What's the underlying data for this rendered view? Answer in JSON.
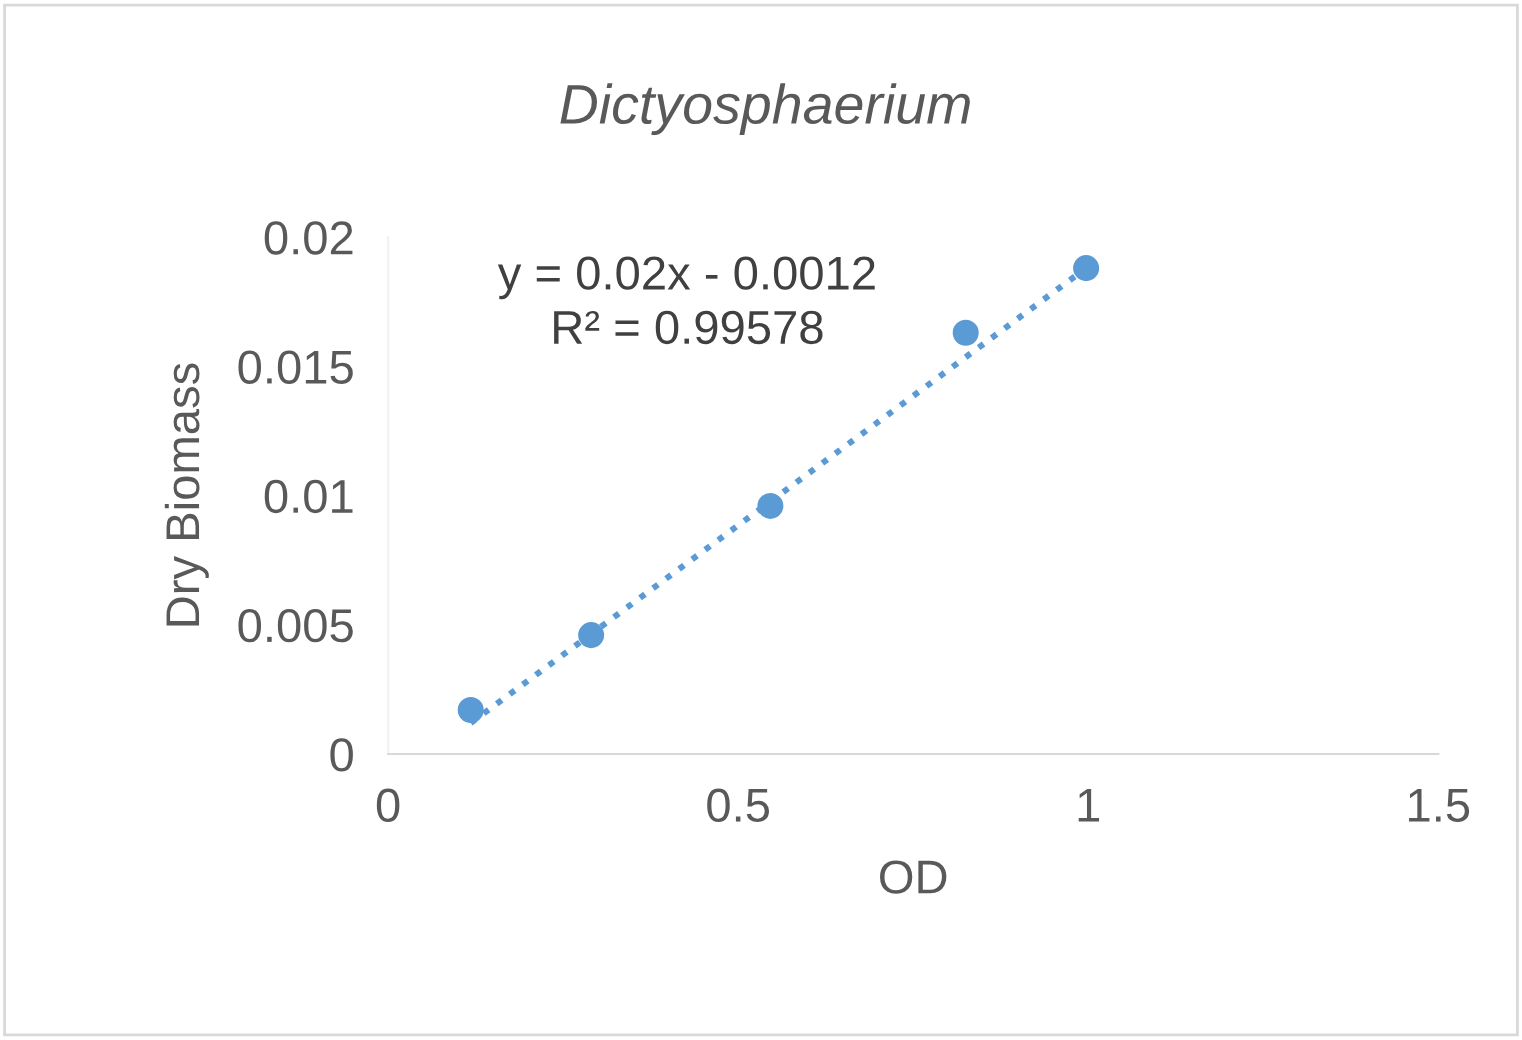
{
  "chart_data": {
    "type": "scatter",
    "title": "Dictyosphaerium",
    "xlabel": "OD",
    "ylabel": "Dry Biomass",
    "series": [
      {
        "color": "#5b9bd5",
        "marker": "circle",
        "x": [
          0.118,
          0.29,
          0.546,
          0.825,
          0.997
        ],
        "values": [
          0.0017,
          0.0046,
          0.0096,
          0.0163,
          0.0188
        ]
      },
      {
        "type": "line",
        "color": "#5b9bd5",
        "line_style": "dotted",
        "marker": "none",
        "x": [
          0.118,
          0.997
        ],
        "values": [
          0.0012,
          0.0188
        ]
      }
    ],
    "annotations": [
      "y = 0.02x - 0.0012\nR² = 0.99578"
    ],
    "xlim": [
      0,
      1.5
    ],
    "xticks": [
      0,
      0.5,
      1,
      1.5
    ],
    "ylim": [
      0,
      0.02
    ],
    "yticks": [
      0,
      0.005,
      0.01,
      0.015,
      0.02
    ],
    "grid": false,
    "legend": false
  }
}
